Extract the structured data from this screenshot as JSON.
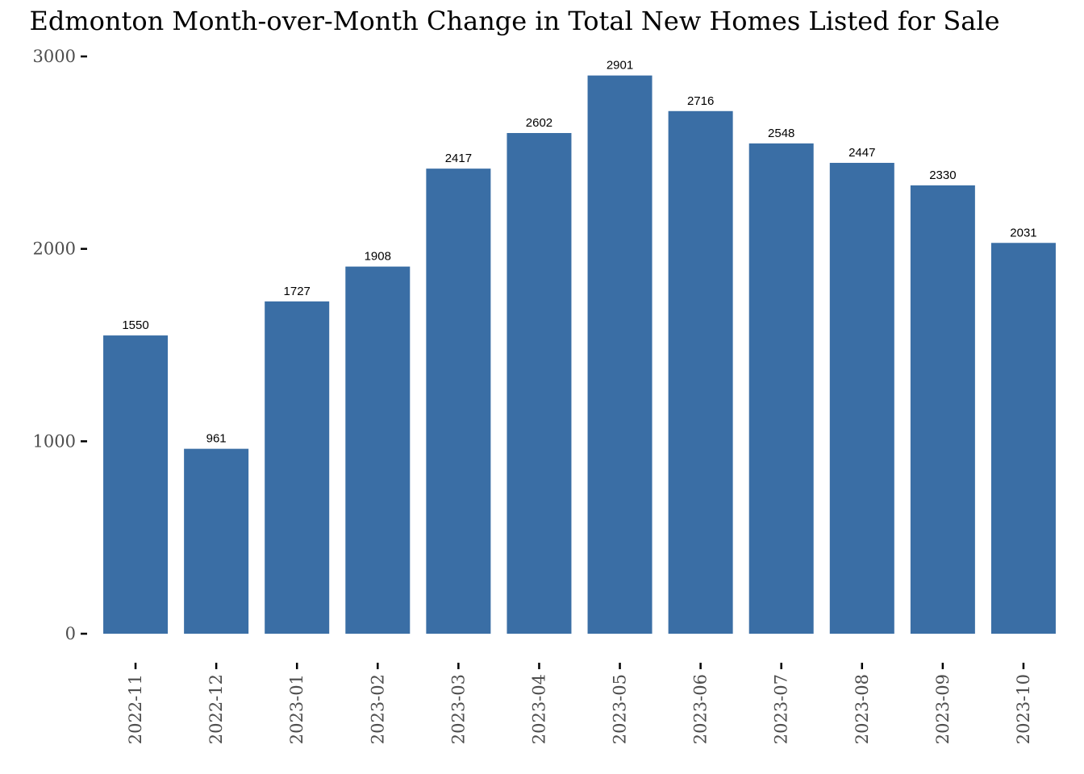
{
  "chart_data": {
    "type": "bar",
    "title": "Edmonton Month-over-Month Change in Total New Homes Listed for Sale",
    "xlabel": "",
    "ylabel": "",
    "categories": [
      "2022-11",
      "2022-12",
      "2023-01",
      "2023-02",
      "2023-03",
      "2023-04",
      "2023-05",
      "2023-06",
      "2023-07",
      "2023-08",
      "2023-09",
      "2023-10"
    ],
    "values": [
      1550,
      961,
      1727,
      1908,
      2417,
      2602,
      2901,
      2716,
      2548,
      2447,
      2330,
      2031
    ],
    "ylim": [
      0,
      3000
    ],
    "yticks": [
      0,
      1000,
      2000,
      3000
    ],
    "grid": false,
    "legend": "none",
    "bar_color": "#3a6ea5",
    "data_labels": true
  }
}
